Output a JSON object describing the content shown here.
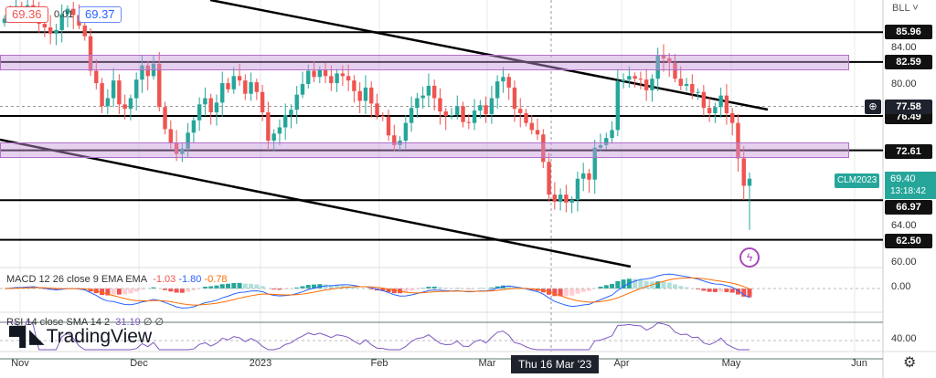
{
  "header": {
    "bid": "69.36",
    "spread": "0.01",
    "ask": "69.37"
  },
  "price_axis": {
    "unit_menu": "BLL",
    "ticks": [
      "84.00",
      "80.00",
      "64.00",
      "60.00"
    ],
    "level_labels": [
      "85.96",
      "82.59",
      "76.49",
      "72.61",
      "66.97",
      "62.50"
    ],
    "crosshair_price": "77.58",
    "symbol": "CLM2023",
    "last_price": "69.40",
    "countdown": "13:18:42"
  },
  "time_axis": {
    "ticks": [
      "Nov",
      "Dec",
      "2023",
      "Feb",
      "Mar",
      "Apr",
      "May",
      "Jun"
    ],
    "crosshair_date": "Thu 16 Mar '23"
  },
  "macd": {
    "legend": "MACD 12 26 close 9 EMA EMA",
    "hist": "-1.03",
    "macd": "-1.80",
    "signal": "-0.78",
    "zero_tick": "0.00"
  },
  "rsi": {
    "legend": "RSI 14 close SMA 14 2",
    "value": "31.19",
    "na1": "∅",
    "na2": "∅",
    "tick": "40.00"
  },
  "brand": "TradingView",
  "colors": {
    "up": "#26a69a",
    "down": "#ef5350",
    "zone": "#d9b3e6",
    "macd": "#2962ff",
    "signal": "#ff6d00",
    "rsi": "#7e57c2"
  },
  "chart_data": {
    "type": "candlestick",
    "symbol": "CLM2023",
    "closes": [
      87.5,
      88.2,
      88.9,
      88.0,
      89.0,
      88.8,
      86.9,
      86.5,
      85.8,
      86.2,
      88.0,
      88.6,
      87.9,
      86.7,
      85.5,
      81.6,
      80.2,
      77.6,
      78.5,
      80.5,
      77.8,
      77.3,
      78.5,
      80.6,
      82.2,
      81.0,
      82.4,
      77.5,
      75.0,
      73.5,
      72.2,
      72.8,
      74.6,
      76.0,
      77.8,
      78.5,
      76.9,
      78.0,
      80.2,
      79.5,
      81.0,
      80.5,
      79.0,
      80.3,
      79.2,
      76.9,
      73.7,
      74.5,
      75.2,
      76.6,
      77.2,
      78.9,
      80.1,
      81.6,
      80.9,
      81.7,
      81.0,
      80.2,
      81.3,
      81.0,
      80.5,
      79.3,
      78.2,
      79.7,
      77.9,
      76.5,
      76.4,
      74.3,
      73.2,
      73.7,
      75.7,
      77.4,
      78.5,
      78.8,
      79.9,
      78.5,
      77.0,
      76.5,
      76.6,
      77.6,
      75.8,
      75.7,
      77.1,
      77.7,
      76.7,
      78.5,
      80.4,
      80.9,
      79.7,
      77.3,
      76.8,
      75.7,
      74.9,
      74.4,
      71.3,
      67.6,
      66.8,
      67.6,
      66.7,
      67.0,
      69.4,
      70.0,
      69.3,
      72.9,
      73.2,
      74.0,
      74.9,
      80.4,
      80.6,
      81.0,
      80.7,
      80.6,
      79.4,
      80.7,
      83.3,
      83.0,
      82.5,
      80.7,
      79.9,
      80.1,
      79.1,
      79.2,
      77.4,
      76.8,
      77.5,
      78.8,
      76.8,
      75.7,
      71.7,
      68.6,
      69.4
    ],
    "horizontal_levels": [
      85.96,
      82.59,
      76.49,
      72.61,
      66.97,
      62.5
    ],
    "zones": [
      [
        81.75,
        83.3
      ],
      [
        71.85,
        73.5
      ]
    ],
    "trendlines": [
      {
        "from": [
          "Dec 2022",
          89.4
        ],
        "to": [
          "May 2023",
          77.0
        ]
      },
      {
        "from": [
          "Nov 2022",
          75.6
        ],
        "to": [
          "Apr 2023",
          60.8
        ]
      }
    ],
    "ylim": [
      58.3,
      89.4
    ],
    "grid": true
  }
}
